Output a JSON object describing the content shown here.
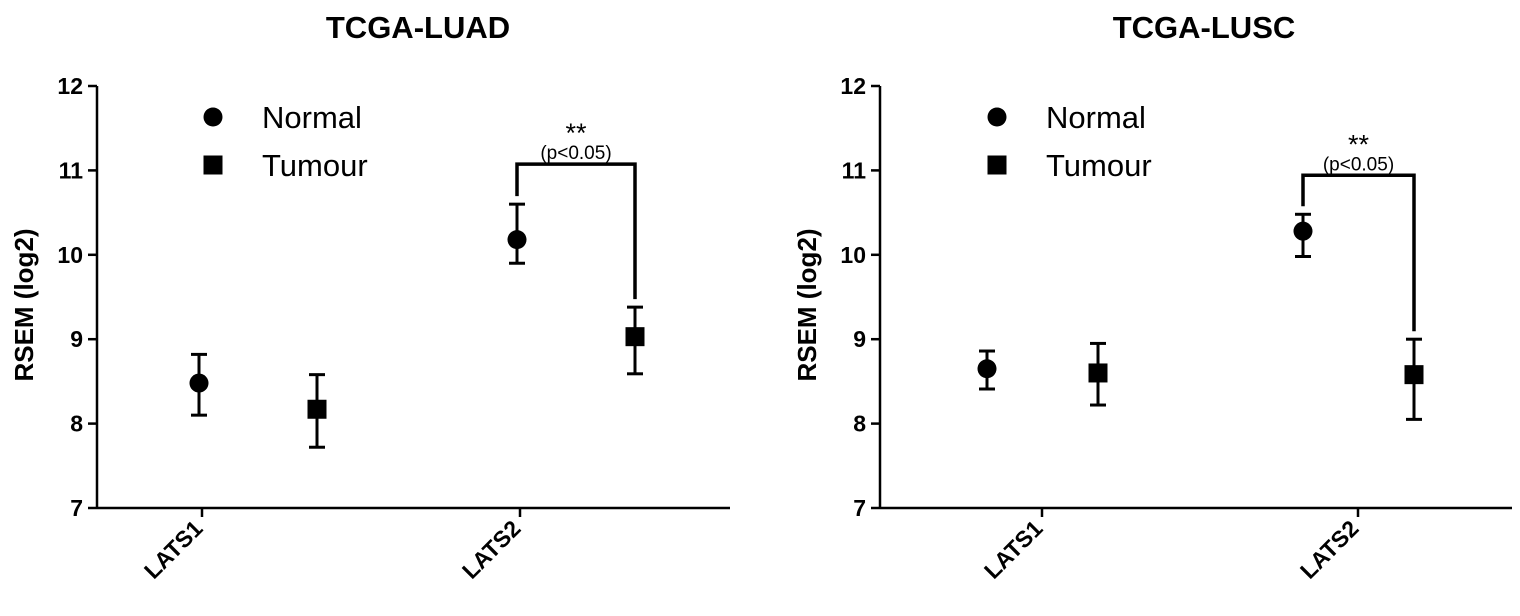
{
  "chart_data": [
    {
      "type": "scatter",
      "title": "TCGA-LUAD",
      "ylabel": "RSEM (log2)",
      "ylim": [
        7,
        12
      ],
      "yticks": [
        7,
        8,
        9,
        10,
        11,
        12
      ],
      "categories": [
        "LATS1",
        "LATS2"
      ],
      "legend": {
        "placement": "top-left"
      },
      "series": [
        {
          "name": "Normal",
          "marker": "circle",
          "values": [
            8.48,
            10.18
          ],
          "error_low": [
            8.1,
            9.9
          ],
          "error_high": [
            8.82,
            10.6
          ]
        },
        {
          "name": "Tumour",
          "marker": "square",
          "values": [
            8.17,
            9.03
          ],
          "error_low": [
            7.72,
            8.59
          ],
          "error_high": [
            8.58,
            9.38
          ]
        }
      ],
      "annotations": [
        {
          "category": "LATS2",
          "stars": "**",
          "text": "(p<0.05)"
        }
      ]
    },
    {
      "type": "scatter",
      "title": "TCGA-LUSC",
      "ylabel": "RSEM (log2)",
      "ylim": [
        7,
        12
      ],
      "yticks": [
        7,
        8,
        9,
        10,
        11,
        12
      ],
      "categories": [
        "LATS1",
        "LATS2"
      ],
      "legend": {
        "placement": "top-left"
      },
      "series": [
        {
          "name": "Normal",
          "marker": "circle",
          "values": [
            8.65,
            10.28
          ],
          "error_low": [
            8.41,
            9.98
          ],
          "error_high": [
            8.86,
            10.48
          ]
        },
        {
          "name": "Tumour",
          "marker": "square",
          "values": [
            8.6,
            8.58
          ],
          "error_low": [
            8.22,
            8.05
          ],
          "error_high": [
            8.95,
            9.0
          ]
        }
      ],
      "annotations": [
        {
          "category": "LATS2",
          "stars": "**",
          "text": "(p<0.05)"
        }
      ]
    }
  ]
}
